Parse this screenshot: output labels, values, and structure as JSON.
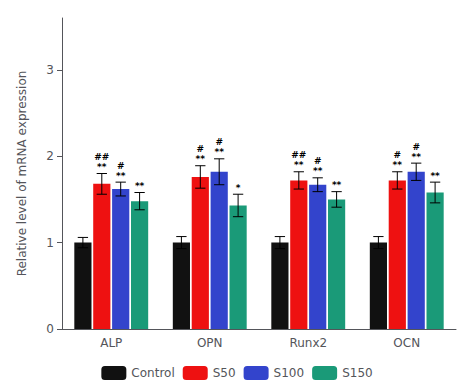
{
  "chart_data": {
    "type": "bar",
    "categories": [
      "ALP",
      "OPN",
      "Runx2",
      "OCN"
    ],
    "series": [
      {
        "name": "Control",
        "color": "#111111",
        "values": [
          1.0,
          1.0,
          1.0,
          1.0
        ],
        "errors": [
          0.06,
          0.07,
          0.07,
          0.07
        ]
      },
      {
        "name": "S50",
        "color": "#ee1111",
        "values": [
          1.68,
          1.76,
          1.72,
          1.72
        ],
        "errors": [
          0.12,
          0.13,
          0.1,
          0.1
        ]
      },
      {
        "name": "S100",
        "color": "#3344cc",
        "values": [
          1.62,
          1.82,
          1.67,
          1.82
        ],
        "errors": [
          0.08,
          0.15,
          0.08,
          0.1
        ]
      },
      {
        "name": "S150",
        "color": "#1a9a78",
        "values": [
          1.48,
          1.43,
          1.5,
          1.58
        ],
        "errors": [
          0.1,
          0.13,
          0.09,
          0.12
        ]
      }
    ],
    "annotations": [
      {
        "category": "ALP",
        "series": "S50",
        "text": [
          "##",
          "**"
        ]
      },
      {
        "category": "ALP",
        "series": "S100",
        "text": [
          "#",
          "**"
        ]
      },
      {
        "category": "ALP",
        "series": "S150",
        "text": [
          "**"
        ]
      },
      {
        "category": "OPN",
        "series": "S50",
        "text": [
          "#",
          "**"
        ]
      },
      {
        "category": "OPN",
        "series": "S100",
        "text": [
          "#",
          "**"
        ]
      },
      {
        "category": "OPN",
        "series": "S150",
        "text": [
          "*"
        ]
      },
      {
        "category": "Runx2",
        "series": "S50",
        "text": [
          "##",
          "**"
        ]
      },
      {
        "category": "Runx2",
        "series": "S100",
        "text": [
          "#",
          "**"
        ]
      },
      {
        "category": "Runx2",
        "series": "S150",
        "text": [
          "**"
        ]
      },
      {
        "category": "OCN",
        "series": "S50",
        "text": [
          "#",
          "**"
        ]
      },
      {
        "category": "OCN",
        "series": "S100",
        "text": [
          "#",
          "**"
        ]
      },
      {
        "category": "OCN",
        "series": "S150",
        "text": [
          "**"
        ]
      }
    ],
    "ylabel": "Relative level of mRNA expression",
    "ylim": [
      0,
      3.6
    ],
    "yticks": [
      0,
      1,
      2,
      3
    ],
    "grid": false,
    "legend": "bottom"
  }
}
